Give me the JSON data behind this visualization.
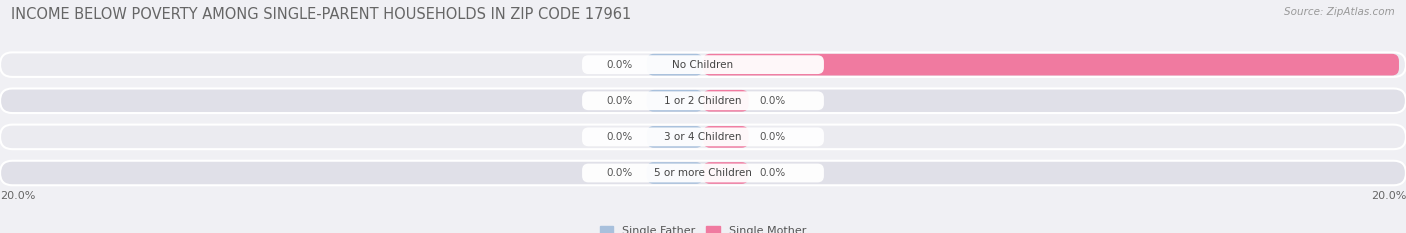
{
  "title": "INCOME BELOW POVERTY AMONG SINGLE-PARENT HOUSEHOLDS IN ZIP CODE 17961",
  "source": "Source: ZipAtlas.com",
  "categories": [
    "No Children",
    "1 or 2 Children",
    "3 or 4 Children",
    "5 or more Children"
  ],
  "single_father_values": [
    0.0,
    0.0,
    0.0,
    0.0
  ],
  "single_mother_values": [
    19.8,
    0.0,
    0.0,
    0.0
  ],
  "max_val": 20.0,
  "father_color": "#a8c0dc",
  "mother_color": "#f07aA0",
  "bar_bg_color_light": "#e8e8ec",
  "bar_bg_color_dark": "#dddde4",
  "bg_color": "#f0f0f4",
  "row_bg_light": "#ebebf0",
  "row_bg_dark": "#e0e0e8",
  "title_fontsize": 10.5,
  "source_fontsize": 7.5,
  "label_fontsize": 7.5,
  "category_fontsize": 7.5,
  "axis_label_fontsize": 8,
  "legend_fontsize": 8
}
